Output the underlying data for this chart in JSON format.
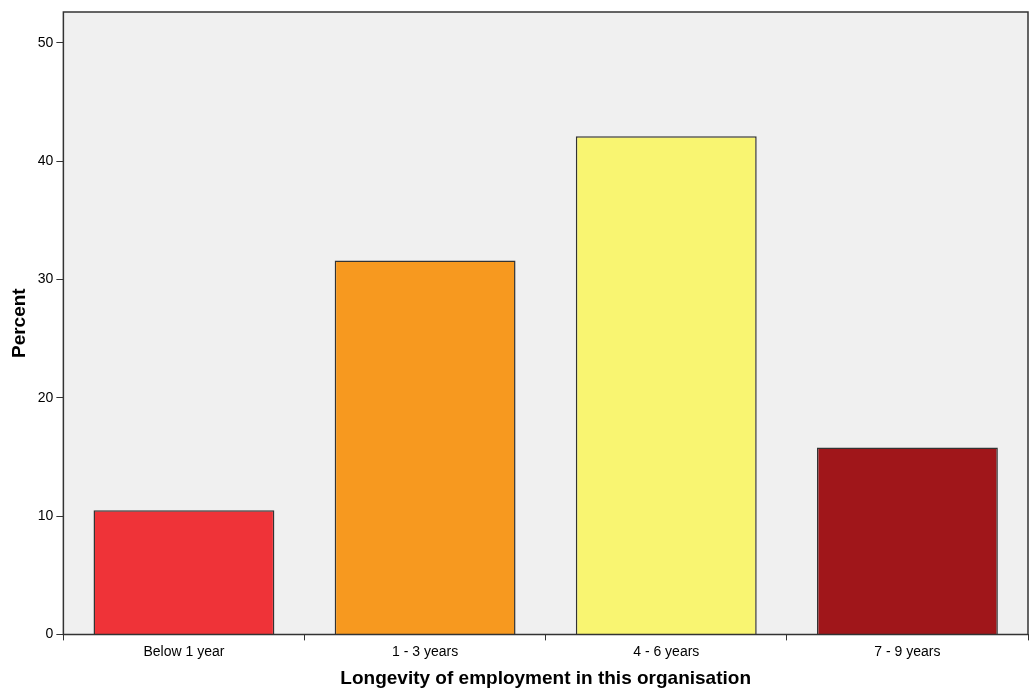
{
  "chart_data": {
    "type": "bar",
    "xlabel": "Longevity of employment in this organisation",
    "ylabel": "Percent",
    "categories": [
      "Below 1 year",
      "1 - 3 years",
      "4 - 6 years",
      "7 - 9 years"
    ],
    "values": [
      10.5,
      31.6,
      42.1,
      15.8
    ],
    "colors": [
      "#ef3338",
      "#f7991f",
      "#f9f571",
      "#a0161a"
    ],
    "ylim": [
      0,
      52.6
    ],
    "yticks": [
      0,
      10,
      20,
      30,
      40,
      50
    ],
    "grid": false,
    "legend": false
  }
}
